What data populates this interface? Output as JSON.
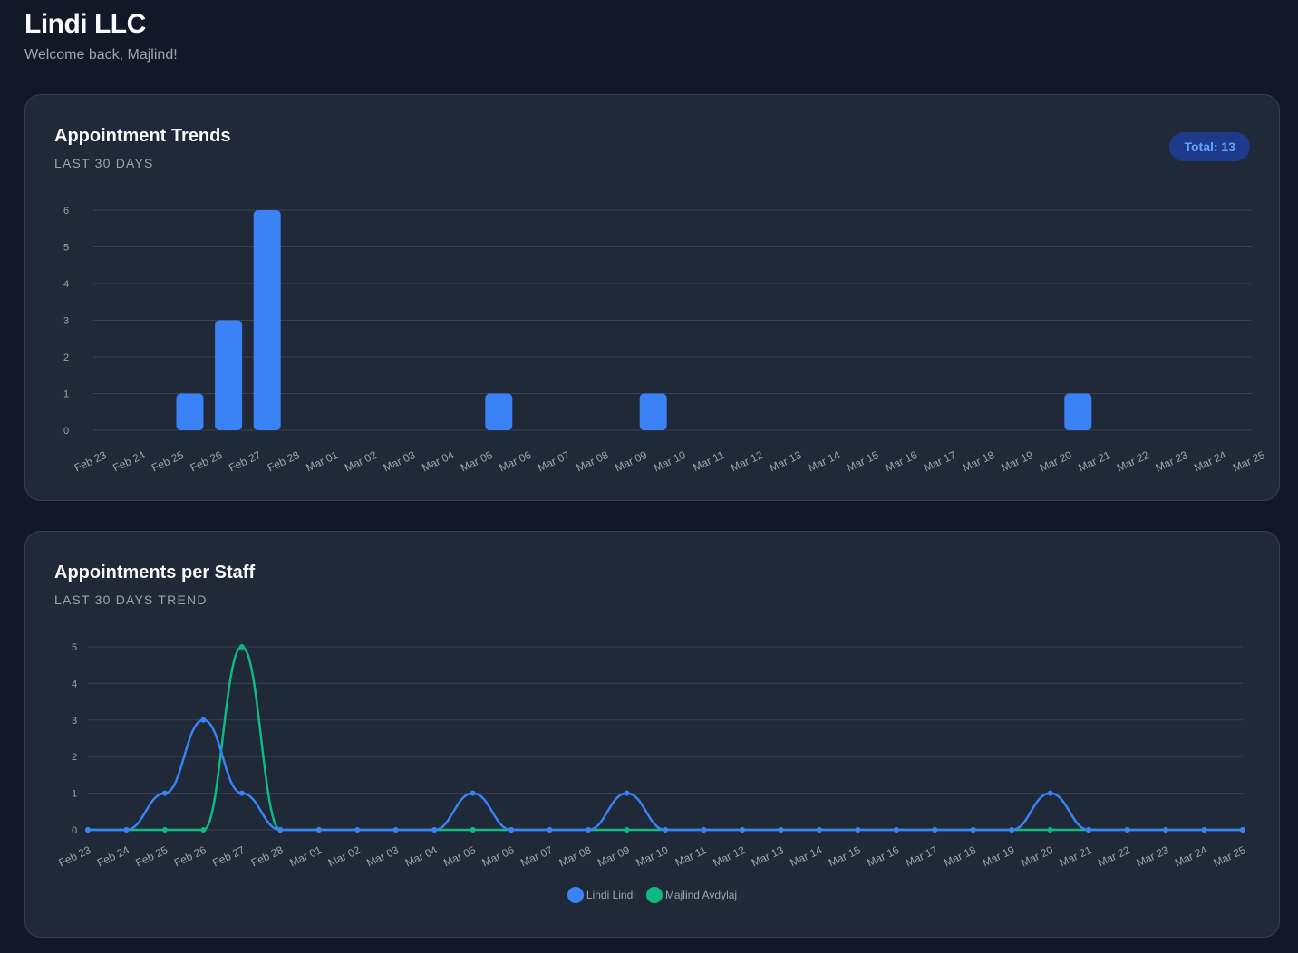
{
  "header": {
    "company": "Lindi LLC",
    "welcome": "Welcome back, Majlind!"
  },
  "trends": {
    "title": "Appointment Trends",
    "subtitle": "LAST 30 DAYS",
    "badge": "Total: 13"
  },
  "staff": {
    "title": "Appointments per Staff",
    "subtitle": "LAST 30 DAYS TREND"
  },
  "colors": {
    "blue": "#3b82f6",
    "green": "#10b981",
    "grid": "#374151",
    "tick": "#9ca3af"
  },
  "chart_data": [
    {
      "type": "bar",
      "categories": [
        "Feb 23",
        "Feb 24",
        "Feb 25",
        "Feb 26",
        "Feb 27",
        "Feb 28",
        "Mar 01",
        "Mar 02",
        "Mar 03",
        "Mar 04",
        "Mar 05",
        "Mar 06",
        "Mar 07",
        "Mar 08",
        "Mar 09",
        "Mar 10",
        "Mar 11",
        "Mar 12",
        "Mar 13",
        "Mar 14",
        "Mar 15",
        "Mar 16",
        "Mar 17",
        "Mar 18",
        "Mar 19",
        "Mar 20",
        "Mar 21",
        "Mar 22",
        "Mar 23",
        "Mar 24",
        "Mar 25"
      ],
      "values": [
        0,
        0,
        1,
        3,
        6,
        0,
        0,
        0,
        0,
        0,
        1,
        0,
        0,
        0,
        1,
        0,
        0,
        0,
        0,
        0,
        0,
        0,
        0,
        0,
        0,
        1,
        0,
        0,
        0,
        0,
        0
      ],
      "ylim": [
        0,
        6
      ],
      "yticks": [
        0,
        1,
        2,
        3,
        4,
        5,
        6
      ],
      "grid": true
    },
    {
      "type": "line",
      "categories": [
        "Feb 23",
        "Feb 24",
        "Feb 25",
        "Feb 26",
        "Feb 27",
        "Feb 28",
        "Mar 01",
        "Mar 02",
        "Mar 03",
        "Mar 04",
        "Mar 05",
        "Mar 06",
        "Mar 07",
        "Mar 08",
        "Mar 09",
        "Mar 10",
        "Mar 11",
        "Mar 12",
        "Mar 13",
        "Mar 14",
        "Mar 15",
        "Mar 16",
        "Mar 17",
        "Mar 18",
        "Mar 19",
        "Mar 20",
        "Mar 21",
        "Mar 22",
        "Mar 23",
        "Mar 24",
        "Mar 25"
      ],
      "series": [
        {
          "name": "Lindi Lindi",
          "color": "#3b82f6",
          "values": [
            0,
            0,
            1,
            3,
            1,
            0,
            0,
            0,
            0,
            0,
            1,
            0,
            0,
            0,
            1,
            0,
            0,
            0,
            0,
            0,
            0,
            0,
            0,
            0,
            0,
            1,
            0,
            0,
            0,
            0,
            0
          ]
        },
        {
          "name": "Majlind Avdylaj",
          "color": "#10b981",
          "values": [
            0,
            0,
            0,
            0,
            5,
            0,
            0,
            0,
            0,
            0,
            0,
            0,
            0,
            0,
            0,
            0,
            0,
            0,
            0,
            0,
            0,
            0,
            0,
            0,
            0,
            0,
            0,
            0,
            0,
            0,
            0
          ]
        }
      ],
      "ylim": [
        0,
        5
      ],
      "yticks": [
        0,
        1,
        2,
        3,
        4,
        5
      ],
      "grid": true,
      "legend_position": "bottom"
    }
  ]
}
